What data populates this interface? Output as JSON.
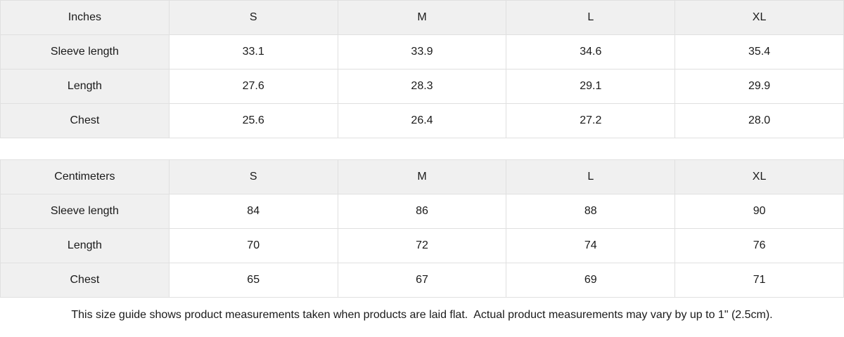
{
  "tables": [
    {
      "unit_label": "Inches",
      "sizes": [
        "S",
        "M",
        "L",
        "XL"
      ],
      "rows": [
        {
          "label": "Sleeve length",
          "values": [
            "33.1",
            "33.9",
            "34.6",
            "35.4"
          ]
        },
        {
          "label": "Length",
          "values": [
            "27.6",
            "28.3",
            "29.1",
            "29.9"
          ]
        },
        {
          "label": "Chest",
          "values": [
            "25.6",
            "26.4",
            "27.2",
            "28.0"
          ]
        }
      ]
    },
    {
      "unit_label": "Centimeters",
      "sizes": [
        "S",
        "M",
        "L",
        "XL"
      ],
      "rows": [
        {
          "label": "Sleeve length",
          "values": [
            "84",
            "86",
            "88",
            "90"
          ]
        },
        {
          "label": "Length",
          "values": [
            "70",
            "72",
            "74",
            "76"
          ]
        },
        {
          "label": "Chest",
          "values": [
            "65",
            "67",
            "69",
            "71"
          ]
        }
      ]
    }
  ],
  "footer_note": "This size guide shows product measurements taken when products are laid flat.  Actual product measurements may vary by up to 1\" (2.5cm).",
  "colors": {
    "header_bg": "#f0f0f0",
    "border": "#e0e0e0",
    "cell_bg": "#ffffff",
    "text": "#1a1a1a"
  }
}
